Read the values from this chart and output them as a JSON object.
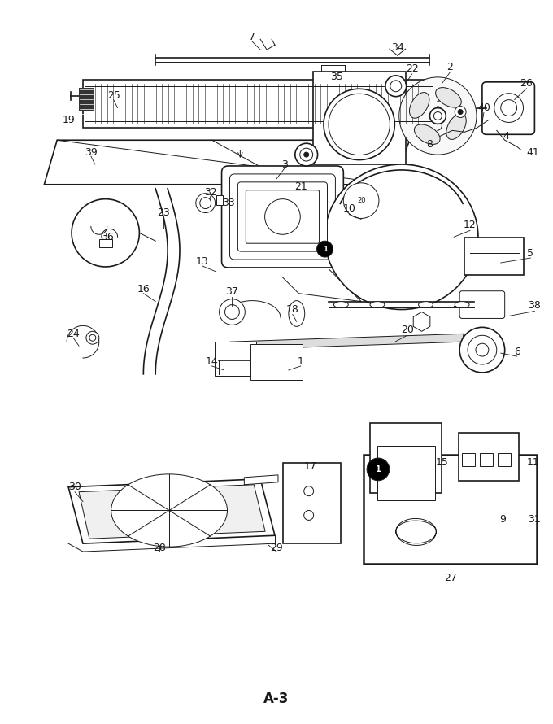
{
  "page_label": "A-3",
  "bg_color": "#ffffff",
  "line_color": "#1a1a1a",
  "fig_width": 6.8,
  "fig_height": 8.9,
  "dpi": 100
}
